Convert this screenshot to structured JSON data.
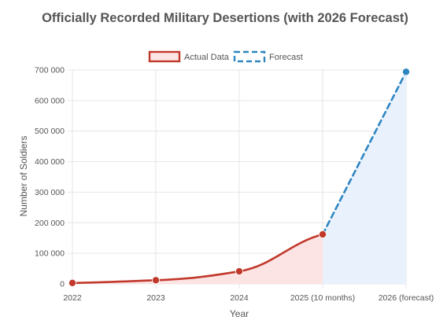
{
  "chart_data": {
    "type": "line",
    "title": "Officially Recorded Military Desertions (with 2026 Forecast)",
    "xlabel": "Year",
    "ylabel": "Number of Soldiers",
    "categories": [
      "2022",
      "2023",
      "2024",
      "2025 (10 months)",
      "2026 (forecast)"
    ],
    "ylim": [
      0,
      700000
    ],
    "yticks": [
      "0",
      "100 000",
      "200 000",
      "300 000",
      "400 000",
      "500 000",
      "600 000",
      "700 000"
    ],
    "ytick_values": [
      0,
      100000,
      200000,
      300000,
      400000,
      500000,
      600000,
      700000
    ],
    "grid": true,
    "legend_position": "top-center",
    "series": [
      {
        "name": "Actual Data",
        "style": "solid",
        "color": "#c0392b",
        "fill": "#fde4e4",
        "values": [
          3000,
          12000,
          41000,
          162000,
          null
        ]
      },
      {
        "name": "Forecast",
        "style": "dashed",
        "color": "#2e86c1",
        "fill": "#e8f1fc",
        "values": [
          null,
          null,
          null,
          162000,
          694000
        ]
      }
    ]
  }
}
